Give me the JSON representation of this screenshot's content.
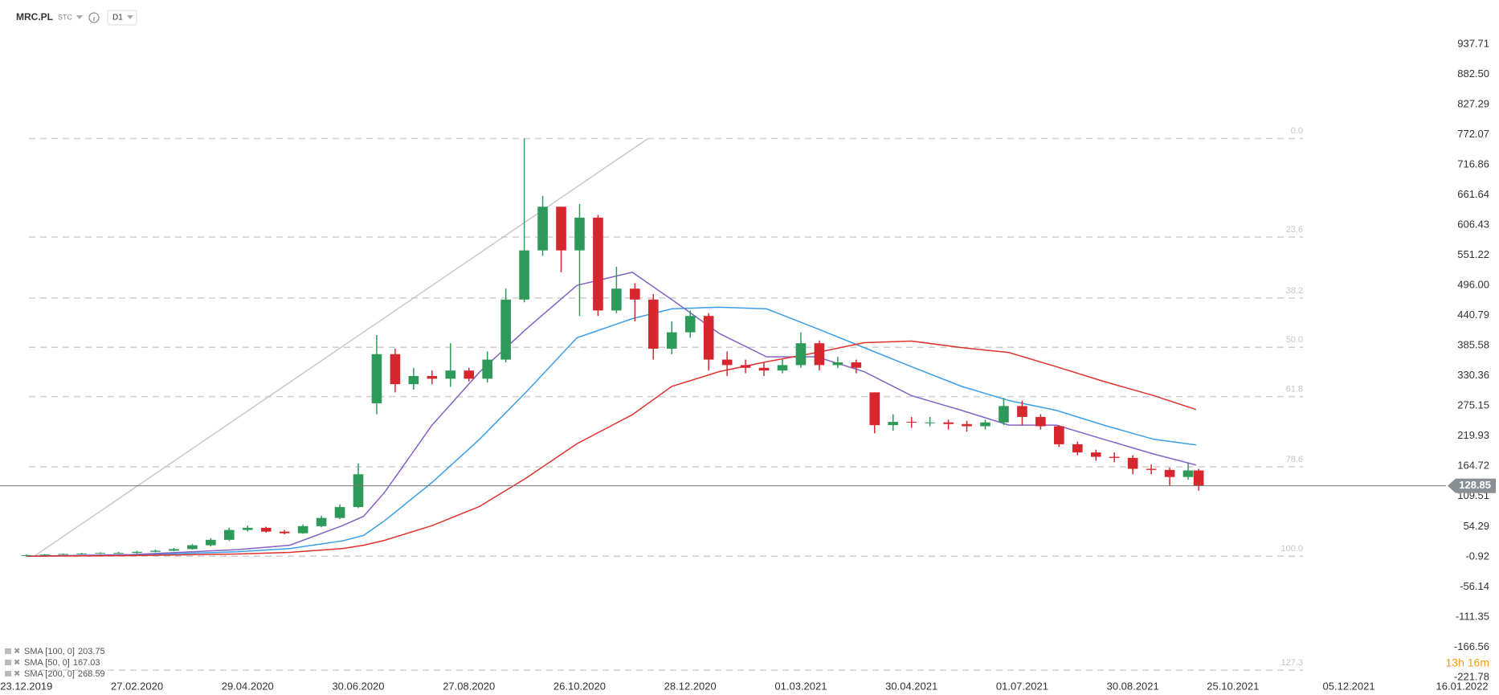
{
  "header": {
    "symbol": "MRC.PL",
    "market": "STC",
    "interval": "D1"
  },
  "chart_data": {
    "type": "candlestick",
    "x": [
      0,
      7,
      14,
      21,
      28,
      35,
      42,
      49,
      56,
      63,
      70,
      77,
      84,
      91,
      98,
      105,
      112,
      119,
      126,
      133,
      140,
      147,
      154,
      161,
      168,
      175,
      182,
      189,
      196,
      203,
      210,
      217,
      224,
      231,
      238,
      245,
      252,
      259,
      266,
      273,
      280,
      287,
      294,
      301,
      308,
      315,
      322,
      329,
      336,
      343,
      350,
      357,
      364,
      371,
      378,
      385,
      392,
      399,
      406,
      413,
      420,
      427,
      434,
      441,
      445
    ],
    "open": [
      1,
      2,
      3,
      4,
      5,
      6,
      6,
      8,
      10,
      13,
      20,
      30,
      48,
      52,
      45,
      42,
      55,
      70,
      90,
      280,
      370,
      315,
      330,
      325,
      340,
      325,
      360,
      470,
      560,
      640,
      560,
      620,
      450,
      490,
      470,
      380,
      410,
      440,
      360,
      350,
      345,
      340,
      350,
      390,
      350,
      355,
      300,
      240,
      246,
      245,
      245,
      242,
      238,
      245,
      275,
      255,
      238,
      205,
      190,
      182,
      180,
      160,
      158,
      145,
      157
    ],
    "high": [
      3,
      4,
      5,
      6,
      7,
      8,
      10,
      12,
      15,
      22,
      33,
      52,
      56,
      54,
      48,
      58,
      74,
      95,
      170,
      405,
      380,
      345,
      340,
      390,
      345,
      375,
      490,
      765,
      660,
      640,
      645,
      625,
      530,
      500,
      480,
      430,
      450,
      445,
      375,
      360,
      355,
      360,
      410,
      395,
      365,
      360,
      300,
      260,
      255,
      255,
      250,
      248,
      250,
      290,
      285,
      260,
      240,
      210,
      195,
      190,
      185,
      168,
      162,
      170,
      160
    ],
    "low": [
      0,
      1,
      2,
      3,
      4,
      5,
      5,
      7,
      9,
      12,
      18,
      28,
      45,
      43,
      40,
      41,
      53,
      68,
      88,
      260,
      300,
      305,
      315,
      310,
      320,
      318,
      355,
      465,
      550,
      520,
      440,
      440,
      445,
      430,
      360,
      370,
      400,
      340,
      330,
      335,
      330,
      335,
      345,
      340,
      345,
      335,
      225,
      230,
      235,
      238,
      232,
      228,
      232,
      240,
      240,
      232,
      200,
      185,
      175,
      172,
      150,
      150,
      128,
      140,
      120
    ],
    "close": [
      2,
      3,
      4,
      5,
      6,
      6,
      8,
      10,
      13,
      20,
      30,
      48,
      52,
      45,
      42,
      55,
      70,
      90,
      150,
      370,
      315,
      330,
      325,
      340,
      325,
      360,
      470,
      560,
      640,
      560,
      620,
      450,
      490,
      470,
      380,
      410,
      440,
      360,
      350,
      345,
      340,
      350,
      390,
      350,
      355,
      345,
      240,
      246,
      245,
      245,
      242,
      238,
      245,
      275,
      255,
      238,
      205,
      190,
      182,
      180,
      160,
      158,
      145,
      157,
      129
    ],
    "up_color": "#2e9a5a",
    "down_color": "#d8262f",
    "xlim": [
      -10,
      559
    ],
    "xticks": [
      {
        "value": 0,
        "label": "23.12.2019"
      },
      {
        "value": 42,
        "label": "27.02.2020"
      },
      {
        "value": 84,
        "label": "29.04.2020"
      },
      {
        "value": 126,
        "label": "30.06.2020"
      },
      {
        "value": 168,
        "label": "27.08.2020"
      },
      {
        "value": 210,
        "label": "26.10.2020"
      },
      {
        "value": 252,
        "label": "28.12.2020"
      },
      {
        "value": 294,
        "label": "01.03.2021"
      },
      {
        "value": 336,
        "label": "30.04.2021"
      },
      {
        "value": 378,
        "label": "01.07.2021"
      },
      {
        "value": 420,
        "label": "30.08.2021"
      },
      {
        "value": 458,
        "label": "25.10.2021"
      },
      {
        "value": 502,
        "label": "05.12.2021"
      },
      {
        "value": 545,
        "label": "16.01.2022"
      }
    ],
    "ylim": [
      -224.8,
      1018.6
    ],
    "yticks": [
      937.71,
      {
        "value": 882.5,
        "label": "882.50"
      },
      827.29,
      772.07,
      716.86,
      661.64,
      606.43,
      551.22,
      {
        "value": 496,
        "label": "496.00"
      },
      440.79,
      385.58,
      330.36,
      275.15,
      219.93,
      164.72,
      109.51,
      54.29,
      -0.92,
      -56.14,
      -111.35,
      -166.56,
      -221.78
    ],
    "last_price": 128.85,
    "indicators": [
      {
        "name": "SMA [100, 0]",
        "last": 203.75,
        "color": "#3a9ee6",
        "x": [
          0,
          40,
          80,
          100,
          120,
          128,
          136,
          154,
          172,
          190,
          209,
          230,
          245,
          263,
          281,
          300,
          318,
          336,
          355,
          373,
          391,
          409,
          428,
          444
        ],
        "values": [
          0,
          2,
          8,
          14,
          28,
          38,
          65,
          135,
          214,
          302,
          400,
          435,
          453,
          456,
          453,
          417,
          382,
          347,
          311,
          285,
          267,
          240,
          214,
          203.75
        ]
      },
      {
        "name": "SMA [50, 0]",
        "last": 167.03,
        "color": "#8462c4",
        "x": [
          0,
          40,
          80,
          100,
          120,
          128,
          136,
          154,
          172,
          190,
          209,
          230,
          245,
          263,
          281,
          300,
          318,
          336,
          355,
          373,
          391,
          409,
          428,
          444
        ],
        "values": [
          0,
          3,
          12,
          20,
          56,
          73,
          117,
          240,
          337,
          417,
          496,
          520,
          470,
          408,
          365,
          365,
          338,
          294,
          267,
          240,
          240,
          214,
          187,
          167.03
        ]
      },
      {
        "name": "SMA [200, 0]",
        "last": 268.59,
        "color": "#e0312b",
        "x": [
          0,
          40,
          80,
          100,
          120,
          128,
          136,
          154,
          172,
          190,
          209,
          230,
          245,
          263,
          281,
          300,
          318,
          336,
          355,
          373,
          391,
          409,
          428,
          444
        ],
        "values": [
          0,
          1,
          4,
          7,
          14,
          20,
          29,
          56,
          91,
          144,
          206,
          259,
          311,
          338,
          356,
          373,
          391,
          394,
          382,
          373,
          347,
          320,
          294,
          268.59
        ]
      }
    ],
    "fibonacci": {
      "color": "#cfcfcf",
      "levels": [
        {
          "level": "0.0",
          "price": 765
        },
        {
          "level": "23.6",
          "price": 584.5
        },
        {
          "level": "38.2",
          "price": 472.8
        },
        {
          "level": "50.0",
          "price": 382.5
        },
        {
          "level": "61.8",
          "price": 292.2
        },
        {
          "level": "78.6",
          "price": 163.7
        },
        {
          "level": "100.0",
          "price": 0
        },
        {
          "level": "127.3",
          "price": -208.8
        }
      ]
    },
    "trendline": {
      "x": [
        3,
        236
      ],
      "values": [
        0,
        765
      ],
      "color": "#c8c8c8"
    }
  },
  "countdown": "13h 16m"
}
